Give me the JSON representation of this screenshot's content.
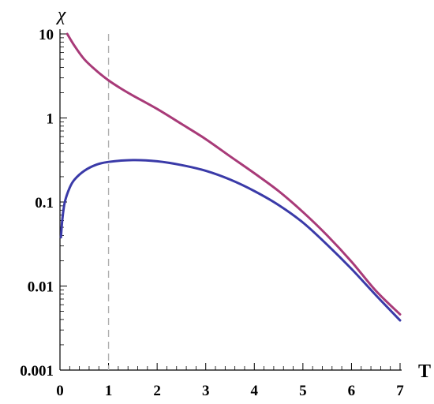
{
  "chart_data": {
    "type": "line",
    "xlabel": "T",
    "ylabel": "χ",
    "xlim": [
      0,
      7
    ],
    "ylim": [
      0.001,
      10
    ],
    "y_scale": "log",
    "x_ticks": [
      "0",
      "1",
      "2",
      "3",
      "4",
      "5",
      "6",
      "7"
    ],
    "y_ticks": [
      "0.001",
      "0.01",
      "0.1",
      "1",
      "10"
    ],
    "reference_lines": [
      {
        "axis": "x",
        "value": 1,
        "style": "dashed",
        "color": "#b0b0b0"
      }
    ],
    "grid": false,
    "legend": "none",
    "series": [
      {
        "color": "#a83a78",
        "points": [
          [
            0.15,
            10.0
          ],
          [
            0.3,
            7.2
          ],
          [
            0.5,
            5.0
          ],
          [
            0.75,
            3.65
          ],
          [
            1.0,
            2.8
          ],
          [
            1.25,
            2.25
          ],
          [
            1.5,
            1.85
          ],
          [
            2.0,
            1.28
          ],
          [
            2.5,
            0.85
          ],
          [
            3.0,
            0.56
          ],
          [
            3.5,
            0.35
          ],
          [
            4.0,
            0.22
          ],
          [
            4.5,
            0.135
          ],
          [
            5.0,
            0.076
          ],
          [
            5.5,
            0.04
          ],
          [
            6.0,
            0.0195
          ],
          [
            6.5,
            0.0088
          ],
          [
            7.0,
            0.0046
          ]
        ]
      },
      {
        "color": "#3a3aa8",
        "points": [
          [
            0.02,
            0.038
          ],
          [
            0.05,
            0.063
          ],
          [
            0.1,
            0.1
          ],
          [
            0.2,
            0.148
          ],
          [
            0.3,
            0.185
          ],
          [
            0.5,
            0.235
          ],
          [
            0.75,
            0.278
          ],
          [
            1.0,
            0.3
          ],
          [
            1.5,
            0.315
          ],
          [
            2.0,
            0.305
          ],
          [
            2.5,
            0.275
          ],
          [
            3.0,
            0.235
          ],
          [
            3.5,
            0.185
          ],
          [
            4.0,
            0.135
          ],
          [
            4.5,
            0.092
          ],
          [
            5.0,
            0.057
          ],
          [
            5.5,
            0.031
          ],
          [
            6.0,
            0.016
          ],
          [
            6.5,
            0.0078
          ],
          [
            7.0,
            0.0039
          ]
        ]
      }
    ]
  }
}
